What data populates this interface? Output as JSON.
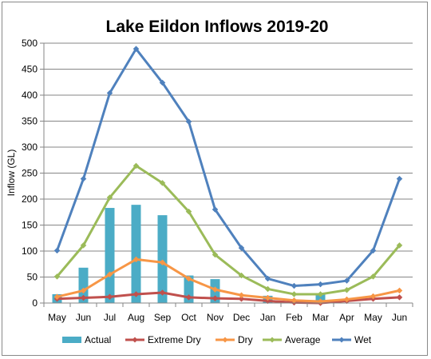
{
  "chart_data": {
    "type": "bar",
    "title": "Lake Eildon Inflows 2019-20",
    "xlabel": "",
    "ylabel": "Inflow (GL)",
    "ylim": [
      0,
      500
    ],
    "yticks": [
      0,
      50,
      100,
      150,
      200,
      250,
      300,
      350,
      400,
      450,
      500
    ],
    "grid": true,
    "legend_position": "bottom",
    "categories": [
      "May",
      "Jun",
      "Jul",
      "Aug",
      "Sep",
      "Oct",
      "Nov",
      "Dec",
      "Jan",
      "Feb",
      "Mar",
      "Apr",
      "May",
      "Jun"
    ],
    "series": [
      {
        "name": "Actual",
        "type": "bar",
        "color": "#4bacc6",
        "values": [
          17,
          68,
          183,
          189,
          169,
          53,
          46,
          null,
          14,
          null,
          17,
          null,
          null,
          null
        ]
      },
      {
        "name": "Extreme Dry",
        "type": "line",
        "marker": "diamond",
        "color": "#c0504d",
        "values": [
          8,
          10,
          12,
          17,
          20,
          11,
          9,
          8,
          4,
          1,
          0,
          4,
          8,
          11
        ]
      },
      {
        "name": "Dry",
        "type": "line",
        "marker": "diamond",
        "color": "#f79646",
        "values": [
          12,
          24,
          55,
          84,
          78,
          47,
          26,
          15,
          10,
          5,
          3,
          7,
          13,
          24
        ]
      },
      {
        "name": "Average",
        "type": "line",
        "marker": "diamond",
        "color": "#9bbb59",
        "values": [
          51,
          111,
          203,
          264,
          231,
          176,
          93,
          53,
          27,
          17,
          17,
          25,
          51,
          111
        ]
      },
      {
        "name": "Wet",
        "type": "line",
        "marker": "diamond",
        "color": "#4f81bd",
        "values": [
          101,
          239,
          404,
          489,
          424,
          349,
          180,
          106,
          47,
          33,
          36,
          43,
          101,
          239
        ]
      }
    ]
  }
}
